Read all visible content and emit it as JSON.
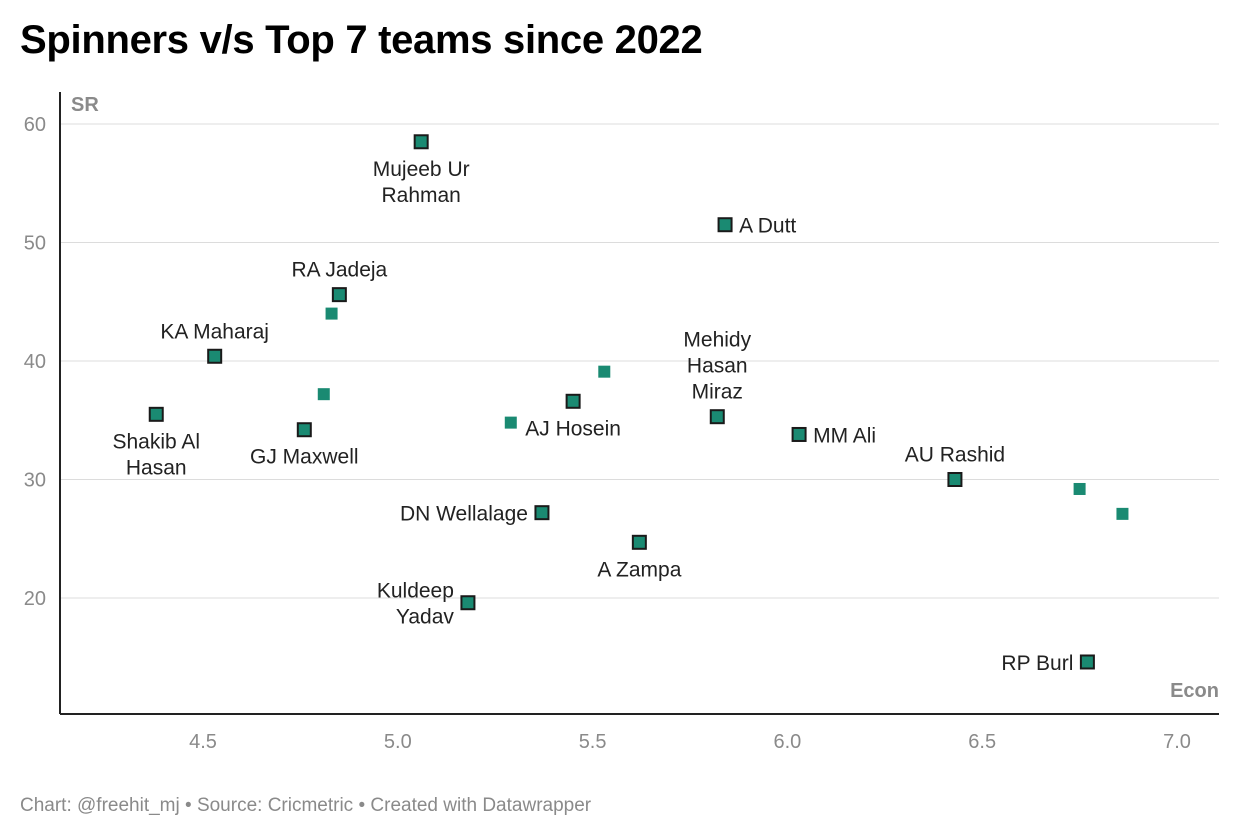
{
  "title": "Spinners v/s Top 7 teams since 2022",
  "footer": "Chart: @freehit_mj • Source: Cricmetric • Created with Datawrapper",
  "chart_data": {
    "type": "scatter",
    "xlabel": "Econ",
    "ylabel": "SR",
    "xlim": [
      4.15,
      7.1
    ],
    "ylim": [
      11,
      63
    ],
    "xticks": [
      "4.5",
      "5.0",
      "5.5",
      "6.0",
      "6.5",
      "7.0"
    ],
    "yticks": [
      "20",
      "30",
      "40",
      "50",
      "60"
    ],
    "grid": true,
    "colors": {
      "marker": "#1a8a72",
      "outline": "#1a1a1a"
    },
    "labeled_points": [
      {
        "name": "Mujeeb Ur Rahman",
        "lines": [
          "Mujeeb Ur",
          "Rahman"
        ],
        "x": 5.06,
        "y": 58.5,
        "pos": "below"
      },
      {
        "name": "A Dutt",
        "lines": [
          "A Dutt"
        ],
        "x": 5.84,
        "y": 51.5,
        "pos": "right"
      },
      {
        "name": "RA Jadeja",
        "lines": [
          "RA Jadeja"
        ],
        "x": 4.85,
        "y": 45.6,
        "pos": "above"
      },
      {
        "name": "KA Maharaj",
        "lines": [
          "KA Maharaj"
        ],
        "x": 4.53,
        "y": 40.4,
        "pos": "above"
      },
      {
        "name": "Mehidy Hasan Miraz",
        "lines": [
          "Mehidy",
          "Hasan",
          "Miraz"
        ],
        "x": 5.82,
        "y": 35.3,
        "pos": "above"
      },
      {
        "name": "Shakib Al Hasan",
        "lines": [
          "Shakib Al",
          "Hasan"
        ],
        "x": 4.38,
        "y": 35.5,
        "pos": "below"
      },
      {
        "name": "GJ Maxwell",
        "lines": [
          "GJ Maxwell"
        ],
        "x": 4.76,
        "y": 34.2,
        "pos": "below"
      },
      {
        "name": "AJ Hosein",
        "lines": [
          "AJ Hosein"
        ],
        "x": 5.45,
        "y": 36.6,
        "pos": "below"
      },
      {
        "name": "MM Ali",
        "lines": [
          "MM Ali"
        ],
        "x": 6.03,
        "y": 33.8,
        "pos": "right"
      },
      {
        "name": "AU Rashid",
        "lines": [
          "AU Rashid"
        ],
        "x": 6.43,
        "y": 30.0,
        "pos": "above"
      },
      {
        "name": "DN Wellalage",
        "lines": [
          "DN Wellalage"
        ],
        "x": 5.37,
        "y": 27.2,
        "pos": "left"
      },
      {
        "name": "A Zampa",
        "lines": [
          "A Zampa"
        ],
        "x": 5.62,
        "y": 24.7,
        "pos": "below"
      },
      {
        "name": "Kuldeep Yadav",
        "lines": [
          "Kuldeep",
          "Yadav"
        ],
        "x": 5.18,
        "y": 19.6,
        "pos": "left"
      },
      {
        "name": "RP Burl",
        "lines": [
          "RP Burl"
        ],
        "x": 6.77,
        "y": 14.6,
        "pos": "left"
      }
    ],
    "unlabeled_points": [
      {
        "x": 4.83,
        "y": 44.0
      },
      {
        "x": 4.81,
        "y": 37.2
      },
      {
        "x": 5.53,
        "y": 39.1
      },
      {
        "x": 5.29,
        "y": 34.8
      },
      {
        "x": 6.75,
        "y": 29.2
      },
      {
        "x": 6.86,
        "y": 27.1
      }
    ]
  }
}
